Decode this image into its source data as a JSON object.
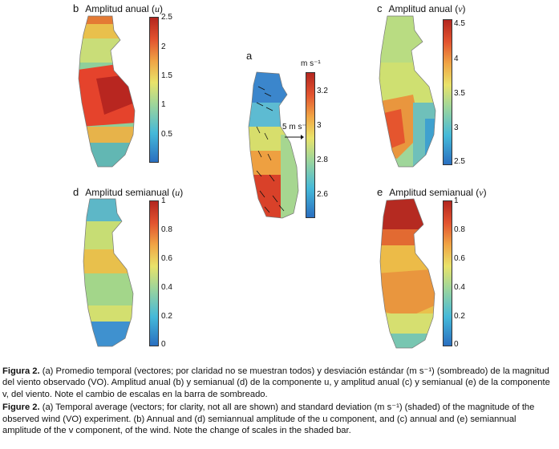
{
  "panels": {
    "b": {
      "letter": "b",
      "title": "Amplitud anual (",
      "var": "u",
      "close": ")",
      "ticks": [
        "2.5",
        "2",
        "1.5",
        "1",
        "0.5"
      ]
    },
    "c": {
      "letter": "c",
      "title": "Amplitud anual (",
      "var": "v",
      "close": ")",
      "ticks": [
        "4.5",
        "4",
        "3.5",
        "3",
        "2.5"
      ]
    },
    "a": {
      "letter": "a",
      "unit": "m s⁻¹",
      "arrow_label": "5 m s⁻¹",
      "ticks": [
        "3.2",
        "3",
        "2.8",
        "2.6"
      ]
    },
    "d": {
      "letter": "d",
      "title": "Amplitud semianual (",
      "var": "u",
      "close": ")",
      "ticks": [
        "1",
        "0.8",
        "0.6",
        "0.4",
        "0.2",
        "0"
      ]
    },
    "e": {
      "letter": "e",
      "title": "Amplitud semianual (",
      "var": "v",
      "close": ")",
      "ticks": [
        "1",
        "0.8",
        "0.6",
        "0.4",
        "0.2",
        "0"
      ]
    }
  },
  "caption": {
    "es_lead": "Figura 2.",
    "es_text": " (a) Promedio temporal (vectores; por claridad no se muestran todos) y desviación estándar (m s⁻¹) (sombreado) de la magnitud del viento observado (VO). Amplitud anual (b) y semianual (d) de la componente u, y amplitud anual (c) y semianual (e) de la componente v, del viento. Note el cambio de escalas en la barra de sombreado.",
    "en_lead": "Figure 2.",
    "en_text": " (a) Temporal average (vectors; for clarity, not all are shown) and standard deviation (m s⁻¹) (shaded) of the magnitude of the observed wind (VO) experiment. (b) Annual and (d) semiannual amplitude of the u component, and (c) annual and (e) semiannual amplitude of the v component, of the wind. Note the change of scales in the shaded bar."
  }
}
